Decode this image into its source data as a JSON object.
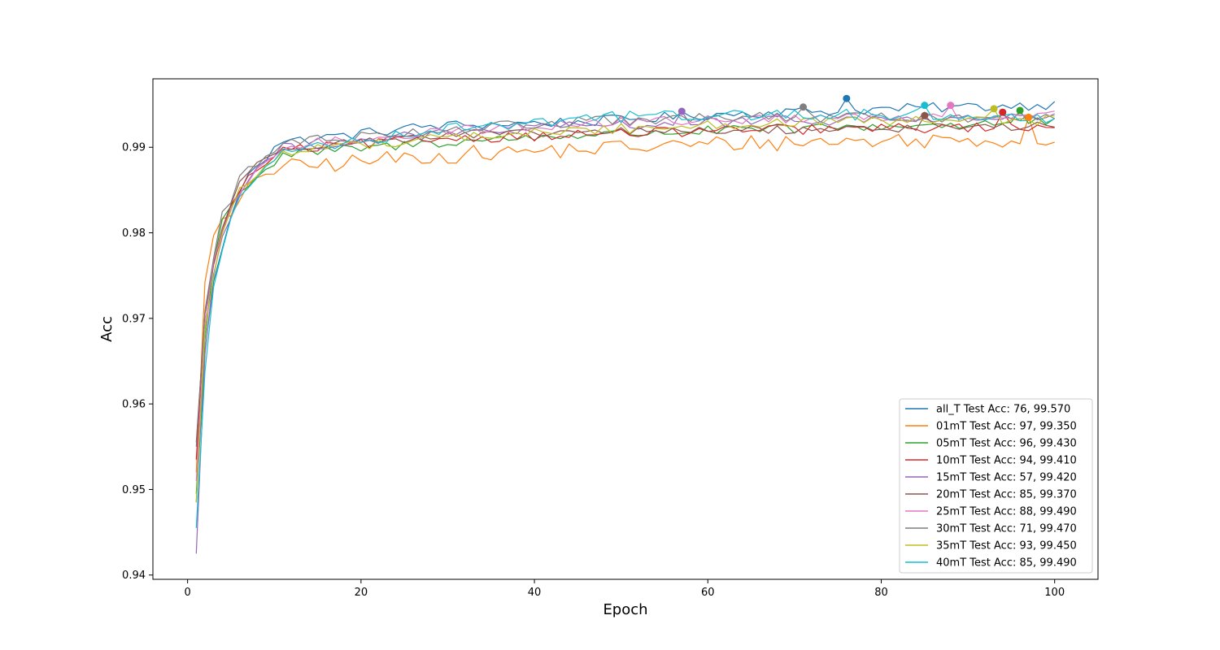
{
  "chart_data": {
    "type": "line",
    "title": "",
    "xlabel": "Epoch",
    "ylabel": "Acc",
    "xlim": [
      -4,
      105
    ],
    "ylim": [
      0.9395,
      0.998
    ],
    "xticks": [
      0,
      20,
      40,
      60,
      80,
      100
    ],
    "xtick_labels": [
      "0",
      "20",
      "40",
      "60",
      "80",
      "100"
    ],
    "yticks": [
      0.94,
      0.95,
      0.96,
      0.97,
      0.98,
      0.99
    ],
    "ytick_labels": [
      "0.94",
      "0.95",
      "0.96",
      "0.97",
      "0.98",
      "0.99"
    ],
    "grid": false,
    "legend_position": "lower-right",
    "series": [
      {
        "name": "all_T Test Acc: 76, 99.570",
        "color": "#1f77b4",
        "start": 0.9485,
        "early": [
          0.9485,
          0.966,
          0.9745,
          0.978,
          0.982,
          0.9845,
          0.987,
          0.988,
          0.9885,
          0.9902
        ],
        "plateau": [
          0.9905,
          0.9925,
          0.993,
          0.994,
          0.9945,
          0.995
        ],
        "noise": 0.0006,
        "best": {
          "epoch": 76,
          "acc": 0.9957
        }
      },
      {
        "name": "01mT Test Acc: 97, 99.350",
        "color": "#ff7f0e",
        "start": 0.952,
        "early": [
          0.952,
          0.9745,
          0.9795,
          0.9815,
          0.982,
          0.9835,
          0.9855,
          0.9865,
          0.987,
          0.987
        ],
        "plateau": [
          0.9875,
          0.989,
          0.9898,
          0.9905,
          0.9908,
          0.991
        ],
        "noise": 0.001,
        "best": {
          "epoch": 97,
          "acc": 0.9935
        }
      },
      {
        "name": "05mT Test Acc: 96, 99.430",
        "color": "#2ca02c",
        "start": 0.9495,
        "early": [
          0.9495,
          0.9675,
          0.9765,
          0.9815,
          0.983,
          0.985,
          0.9855,
          0.9865,
          0.9875,
          0.988
        ],
        "plateau": [
          0.989,
          0.9905,
          0.9915,
          0.992,
          0.9925,
          0.993
        ],
        "noise": 0.0006,
        "best": {
          "epoch": 96,
          "acc": 0.9943
        }
      },
      {
        "name": "10mT Test Acc: 94, 99.410",
        "color": "#d62728",
        "start": 0.9535,
        "early": [
          0.9535,
          0.9705,
          0.9765,
          0.98,
          0.983,
          0.985,
          0.9865,
          0.9872,
          0.988,
          0.989
        ],
        "plateau": [
          0.9895,
          0.991,
          0.9915,
          0.992,
          0.9922,
          0.9925
        ],
        "noise": 0.0006,
        "best": {
          "epoch": 94,
          "acc": 0.9941
        }
      },
      {
        "name": "15mT Test Acc: 57, 99.420",
        "color": "#9467bd",
        "start": 0.9425,
        "early": [
          0.9425,
          0.966,
          0.975,
          0.9795,
          0.982,
          0.9845,
          0.9862,
          0.9875,
          0.9885,
          0.989
        ],
        "plateau": [
          0.9898,
          0.9915,
          0.9925,
          0.993,
          0.9933,
          0.9935
        ],
        "noise": 0.0006,
        "best": {
          "epoch": 57,
          "acc": 0.9942
        }
      },
      {
        "name": "20mT Test Acc: 85, 99.370",
        "color": "#8c564b",
        "start": 0.9555,
        "early": [
          0.9555,
          0.9705,
          0.9765,
          0.9805,
          0.9835,
          0.986,
          0.9868,
          0.988,
          0.9887,
          0.9893
        ],
        "plateau": [
          0.99,
          0.9912,
          0.9918,
          0.992,
          0.9922,
          0.9925
        ],
        "noise": 0.0005,
        "best": {
          "epoch": 85,
          "acc": 0.9937
        }
      },
      {
        "name": "25mT Test Acc: 88, 99.490",
        "color": "#e377c2",
        "start": 0.951,
        "early": [
          0.951,
          0.969,
          0.9765,
          0.98,
          0.983,
          0.9845,
          0.986,
          0.9872,
          0.9882,
          0.989
        ],
        "plateau": [
          0.99,
          0.9918,
          0.9928,
          0.9933,
          0.9935,
          0.9938
        ],
        "noise": 0.0006,
        "best": {
          "epoch": 88,
          "acc": 0.9949
        }
      },
      {
        "name": "30mT Test Acc: 71, 99.470",
        "color": "#7f7f7f",
        "start": 0.955,
        "early": [
          0.955,
          0.971,
          0.977,
          0.9825,
          0.9835,
          0.9865,
          0.9875,
          0.988,
          0.9888,
          0.9895
        ],
        "plateau": [
          0.9905,
          0.992,
          0.993,
          0.9935,
          0.9935,
          0.9935
        ],
        "noise": 0.0006,
        "best": {
          "epoch": 71,
          "acc": 0.9947
        }
      },
      {
        "name": "35mT Test Acc: 93, 99.450",
        "color": "#bcbd22",
        "start": 0.9485,
        "early": [
          0.9485,
          0.9685,
          0.975,
          0.98,
          0.9825,
          0.985,
          0.9858,
          0.9868,
          0.9877,
          0.9885
        ],
        "plateau": [
          0.9895,
          0.991,
          0.992,
          0.9928,
          0.993,
          0.9932
        ],
        "noise": 0.0006,
        "best": {
          "epoch": 93,
          "acc": 0.9945
        }
      },
      {
        "name": "40mT Test Acc: 85, 99.490",
        "color": "#17becf",
        "start": 0.9455,
        "early": [
          0.9455,
          0.964,
          0.9735,
          0.978,
          0.9815,
          0.9845,
          0.985,
          0.9865,
          0.9875,
          0.9885
        ],
        "plateau": [
          0.9895,
          0.992,
          0.9935,
          0.9938,
          0.9938,
          0.9935
        ],
        "noise": 0.0007,
        "best": {
          "epoch": 85,
          "acc": 0.9949
        }
      }
    ]
  }
}
